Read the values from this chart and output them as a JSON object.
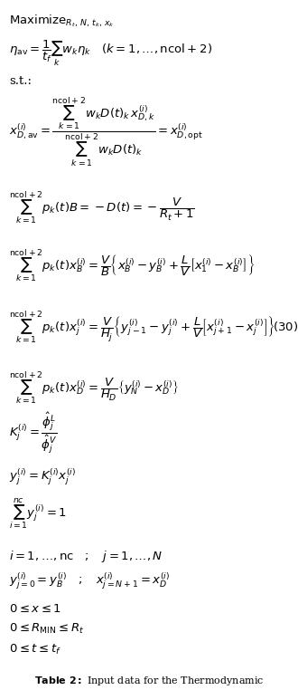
{
  "background_color": "#ffffff",
  "text_color": "#000000",
  "figsize": [
    3.3,
    7.62
  ],
  "dpi": 100
}
